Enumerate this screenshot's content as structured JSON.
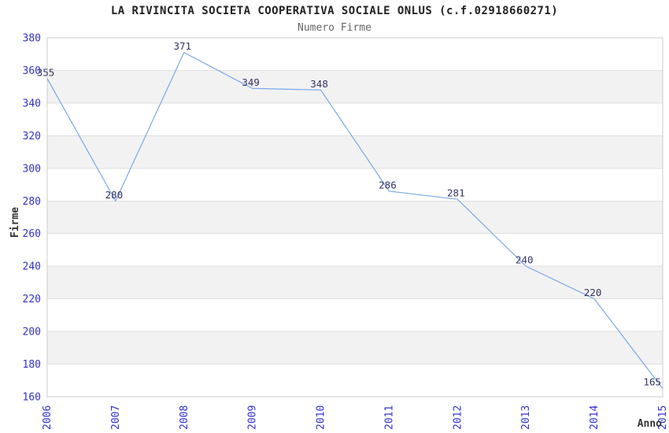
{
  "chart_data": {
    "type": "line",
    "title": "LA RIVINCITA SOCIETA COOPERATIVA SOCIALE ONLUS (c.f.02918660271)",
    "subtitle": "Numero Firme",
    "xlabel": "Anno",
    "ylabel": "Firme",
    "categories": [
      "2006",
      "2007",
      "2008",
      "2009",
      "2010",
      "2011",
      "2012",
      "2013",
      "2014",
      "2015"
    ],
    "values": [
      355,
      280,
      371,
      349,
      348,
      286,
      281,
      240,
      220,
      165
    ],
    "ylim": [
      160,
      380
    ],
    "ytick_step": 20,
    "grid": "horizontal-bands",
    "legend": "none",
    "xtick_rotation": -90,
    "colors": {
      "line": "#7aa8e8",
      "axis_tick_labels": "#3232cd",
      "point_labels": "#333366",
      "title": "#222222",
      "subtitle": "#666666",
      "axis_titles": "#333333",
      "band": "#f2f2f2",
      "gridline": "#e0e0e0",
      "plot_border": "#cccccc",
      "background": "#ffffff"
    }
  }
}
